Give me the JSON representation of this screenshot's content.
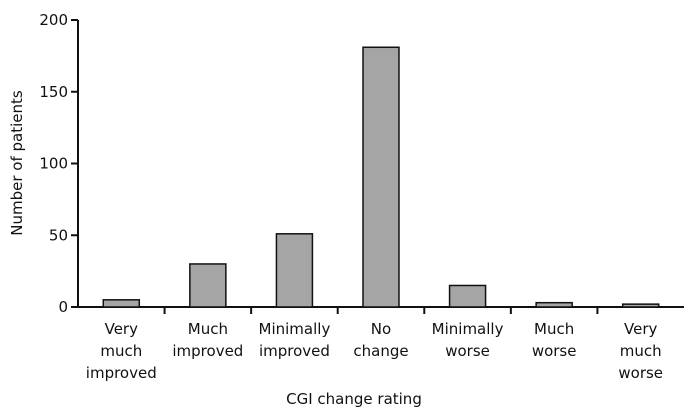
{
  "chart_data": {
    "type": "bar",
    "categories": [
      [
        "Very",
        "much",
        "improved"
      ],
      [
        "Much",
        "improved"
      ],
      [
        "Minimally",
        "improved"
      ],
      [
        "No",
        "change"
      ],
      [
        "Minimally",
        "worse"
      ],
      [
        "Much",
        "worse"
      ],
      [
        "Very",
        "much",
        "worse"
      ]
    ],
    "values": [
      5,
      30,
      51,
      181,
      15,
      3,
      2
    ],
    "title": "",
    "xlabel": "CGI change rating",
    "ylabel": "Number of patients",
    "ylim": [
      0,
      200
    ],
    "yticks": [
      "0",
      "50",
      "100",
      "150",
      "200"
    ],
    "grid": false,
    "legend": "none",
    "colors": {
      "bar_fill": "#a5a5a5",
      "bar_stroke": "#111111",
      "axis": "#111111"
    }
  }
}
